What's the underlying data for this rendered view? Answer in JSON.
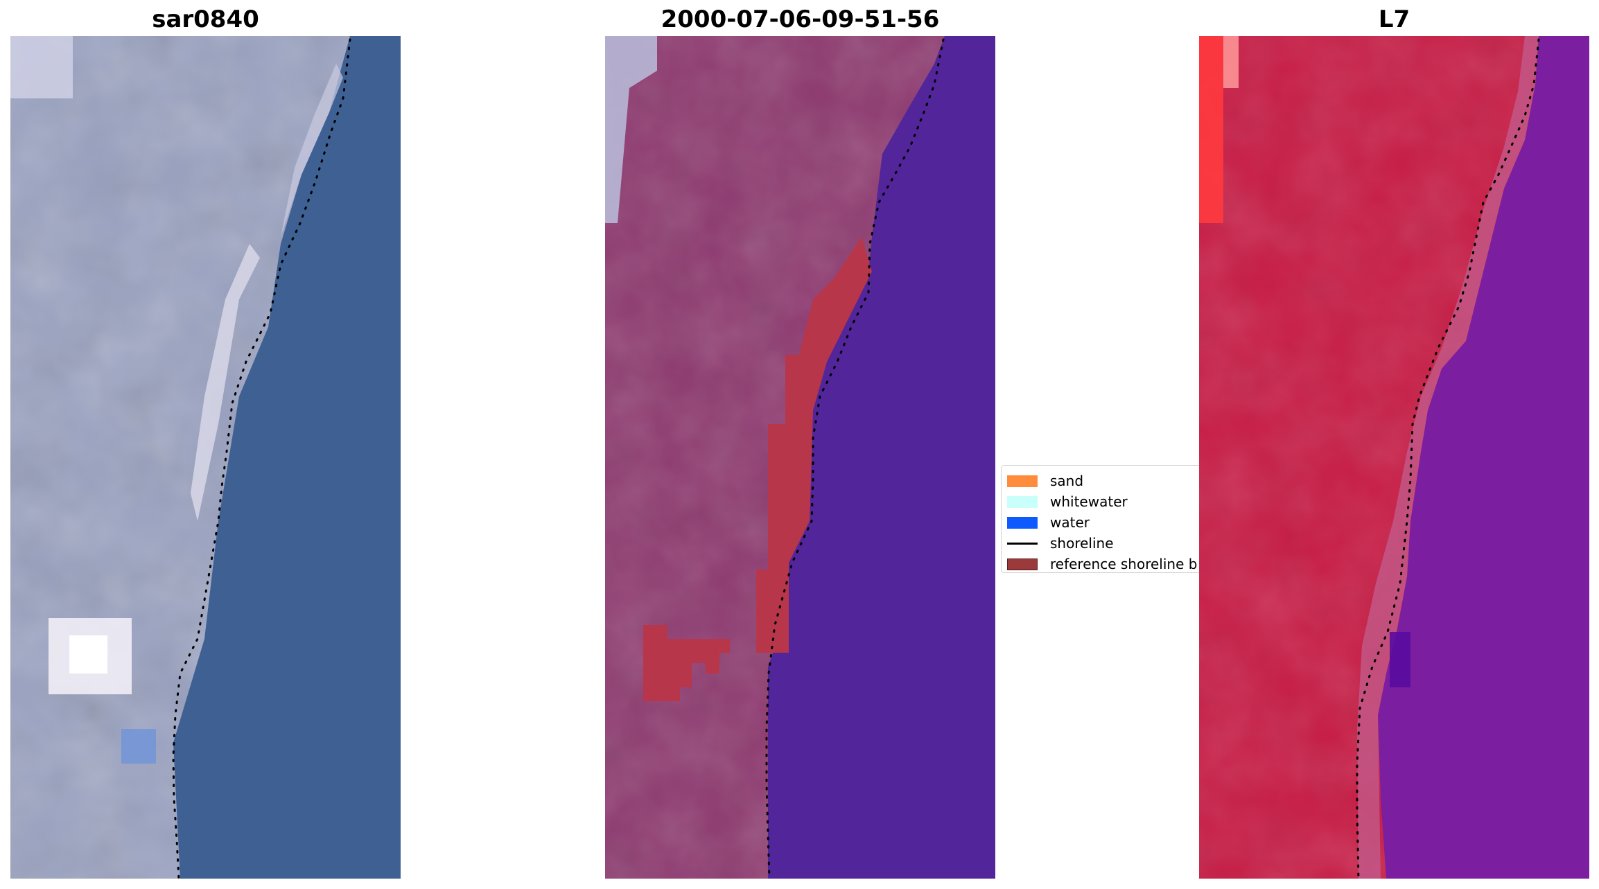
{
  "panels": [
    {
      "title": "sar0840"
    },
    {
      "title": "2000-07-06-09-51-56"
    },
    {
      "title": "L7"
    }
  ],
  "legend": {
    "items": [
      {
        "label": "sand",
        "color": "#ff8c3c"
      },
      {
        "label": "whitewater",
        "color": "#c8fffa"
      },
      {
        "label": "water",
        "color": "#0f5aff"
      },
      {
        "label": "shoreline",
        "color": "#000000"
      },
      {
        "label": "reference shoreline b",
        "color": "#9b3a3a"
      }
    ]
  },
  "colors": {
    "rgb_land": "#9aa2c2",
    "rgb_water": "#3d5f93",
    "classified_land": "#8f3a70",
    "classified_water": "#53259a",
    "buffer": "#b8364a",
    "false_color_land": "#c71d45",
    "false_color_water": "#7a1f9f"
  }
}
